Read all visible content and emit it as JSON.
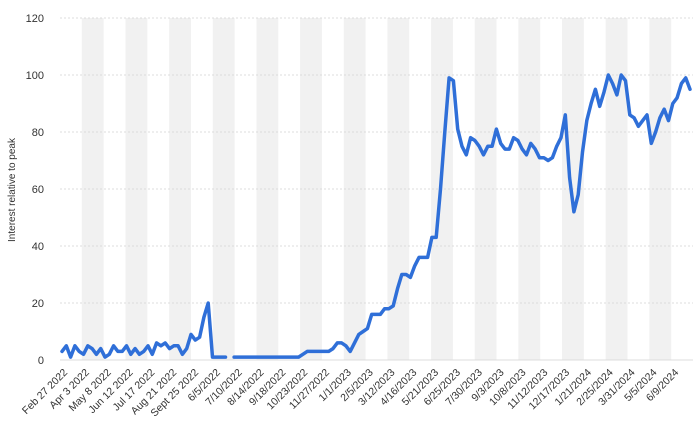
{
  "chart_data": {
    "type": "line",
    "title": "",
    "xlabel": "",
    "ylabel": "Interest relative to peak",
    "ylim": [
      0,
      120
    ],
    "yticks": [
      0,
      20,
      40,
      60,
      80,
      100,
      120
    ],
    "grid": true,
    "legend": "none",
    "line_color": "#2f6fd8",
    "band_color": "#f1f1f1",
    "x_tick_labels": [
      "Feb 27 2022",
      "Apr 3 2022",
      "May 8 2022",
      "Jun 12 2022",
      "Jul 17 2022",
      "Aug 21 2022",
      "Sept 25 2022",
      "6/5/2022",
      "7/10/2022",
      "8/14/2022",
      "9/18/2022",
      "10/23/2022",
      "11/27/2022",
      "1/1/2023",
      "2/5/2023",
      "3/12/2023",
      "4/16/2023",
      "5/21/2023",
      "6/25/2023",
      "7/30/2023",
      "9/3/2023",
      "10/8/2023",
      "11/12/2023",
      "12/17/2023",
      "1/21/2024",
      "2/25/2024",
      "3/31/2024",
      "5/5/2024",
      "6/9/2024"
    ],
    "series": [
      {
        "segments": [
          [
            3,
            5,
            1,
            5,
            3,
            2,
            5,
            4,
            2,
            4,
            1,
            2,
            5,
            3,
            3,
            5,
            2,
            4,
            2,
            3,
            5,
            2,
            6,
            5,
            6,
            4,
            5,
            5,
            2,
            4,
            9,
            7,
            8,
            15,
            20,
            1,
            1,
            1,
            1
          ],
          [
            1,
            1,
            1,
            1,
            1,
            1,
            1,
            1,
            1,
            1,
            1,
            1,
            1,
            1,
            1,
            1,
            2,
            3,
            3,
            3,
            3,
            3,
            3,
            4,
            6,
            6,
            5,
            3,
            6,
            9,
            10,
            11,
            16,
            16,
            16,
            18,
            18,
            19,
            25,
            30,
            30,
            29,
            33,
            36,
            36,
            36,
            43,
            43,
            60,
            80,
            99,
            98,
            81,
            75,
            72,
            78,
            77,
            75,
            72,
            75,
            75,
            81,
            76,
            74,
            74,
            78,
            77,
            74,
            72,
            76,
            74,
            71,
            71,
            70,
            71,
            75,
            78,
            86,
            64,
            52,
            58,
            73,
            84,
            90,
            95,
            89,
            94,
            100,
            97,
            93,
            100,
            98,
            86,
            85,
            82,
            84,
            86,
            76,
            80,
            85,
            88,
            84,
            90,
            92,
            97,
            99,
            95
          ]
        ]
      }
    ]
  }
}
